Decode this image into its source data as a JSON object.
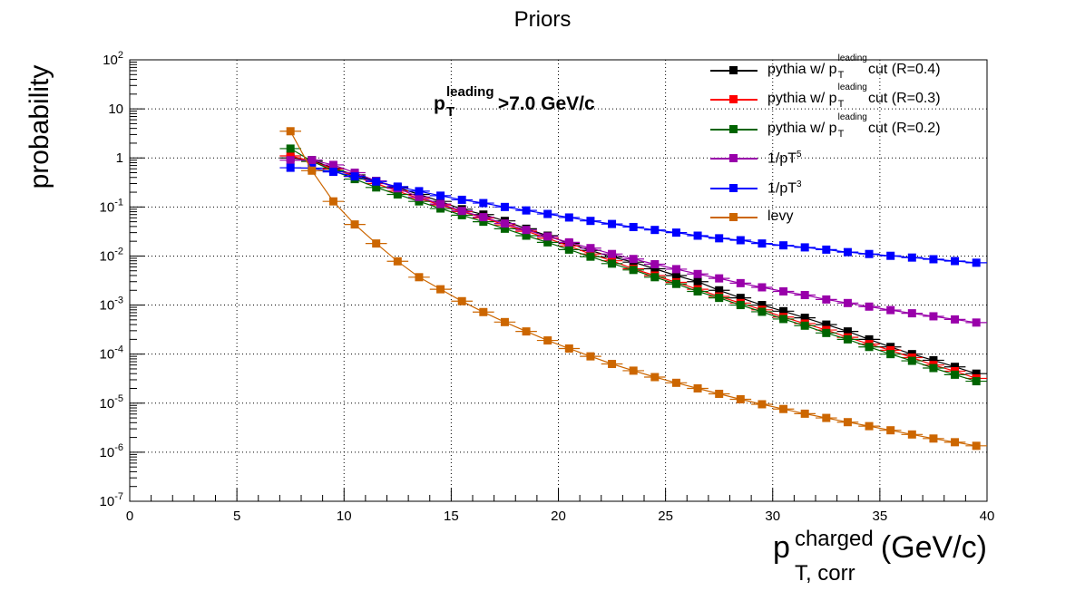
{
  "title": "Priors",
  "ylabel": "probability",
  "xlabel": {
    "base": "p",
    "sup": "charged",
    "sub": "T, corr",
    "unit": "(GeV/c)"
  },
  "annotation": {
    "base": "p",
    "sup": "leading",
    "sub": "T",
    "rest": ">7.0 GeV/c"
  },
  "legend": [
    {
      "pre": "pythia w/ ",
      "p": "p",
      "sup": "leading",
      "sub": "T",
      "post": " cut (R=0.4)"
    },
    {
      "pre": "pythia w/ ",
      "p": "p",
      "sup": "leading",
      "sub": "T",
      "post": " cut (R=0.3)"
    },
    {
      "pre": "pythia w/ ",
      "p": "p",
      "sup": "leading",
      "sub": "T",
      "post": " cut (R=0.2)"
    },
    {
      "pre": "1/pT",
      "sup": "5"
    },
    {
      "pre": "1/pT",
      "sup": "3"
    },
    {
      "pre": "levy"
    }
  ],
  "chart_data": {
    "type": "scatter",
    "title": "Priors",
    "xlabel": "p_T,corr^charged (GeV/c)",
    "ylabel": "probability",
    "xlim": [
      0,
      40
    ],
    "ylim": [
      1e-07,
      100
    ],
    "yscale": "log",
    "grid": true,
    "legend_position": "top-right",
    "x_tick_labels": [
      "0",
      "5",
      "10",
      "15",
      "20",
      "25",
      "30",
      "35",
      "40"
    ],
    "y_tick_labels": [
      {
        "base": "10",
        "exp": "-7"
      },
      {
        "base": "10",
        "exp": "-6"
      },
      {
        "base": "10",
        "exp": "-5"
      },
      {
        "base": "10",
        "exp": "-4"
      },
      {
        "base": "10",
        "exp": "-3"
      },
      {
        "base": "10",
        "exp": "-2"
      },
      {
        "base": "10",
        "exp": "-1"
      },
      {
        "base": "1",
        "exp": ""
      },
      {
        "base": "10",
        "exp": ""
      },
      {
        "base": "10",
        "exp": "2"
      }
    ],
    "x": [
      7.5,
      8.5,
      9.5,
      10.5,
      11.5,
      12.5,
      13.5,
      14.5,
      15.5,
      16.5,
      17.5,
      18.5,
      19.5,
      20.5,
      21.5,
      22.5,
      23.5,
      24.5,
      25.5,
      26.5,
      27.5,
      28.5,
      29.5,
      30.5,
      31.5,
      32.5,
      33.5,
      34.5,
      35.5,
      36.5,
      37.5,
      38.5,
      39.5
    ],
    "series": [
      {
        "name": "pythia w/ pT leading cut (R=0.4)",
        "color": "#000000",
        "values": [
          1.0,
          0.9,
          0.62,
          0.45,
          0.34,
          0.25,
          0.18,
          0.13,
          0.09,
          0.07,
          0.052,
          0.036,
          0.026,
          0.018,
          0.013,
          0.0095,
          0.0075,
          0.0055,
          0.004,
          0.003,
          0.002,
          0.0014,
          0.001,
          0.00075,
          0.00055,
          0.0004,
          0.00029,
          0.0002,
          0.00014,
          0.0001,
          7.5e-05,
          5.5e-05,
          4e-05
        ]
      },
      {
        "name": "pythia w/ pT leading cut (R=0.3)",
        "color": "#ff0000",
        "values": [
          1.1,
          0.85,
          0.6,
          0.42,
          0.3,
          0.21,
          0.15,
          0.11,
          0.08,
          0.06,
          0.043,
          0.032,
          0.023,
          0.016,
          0.011,
          0.008,
          0.0055,
          0.004,
          0.0029,
          0.0021,
          0.0015,
          0.0011,
          0.0008,
          0.00057,
          0.00042,
          0.00031,
          0.00022,
          0.00016,
          0.00012,
          8.5e-05,
          6e-05,
          4.5e-05,
          3.2e-05
        ]
      },
      {
        "name": "pythia w/ pT leading cut (R=0.2)",
        "color": "#006400",
        "values": [
          1.55,
          0.85,
          0.55,
          0.37,
          0.25,
          0.18,
          0.13,
          0.093,
          0.068,
          0.05,
          0.036,
          0.026,
          0.019,
          0.0135,
          0.0097,
          0.007,
          0.0052,
          0.0037,
          0.0027,
          0.0019,
          0.0014,
          0.001,
          0.00073,
          0.00052,
          0.00038,
          0.00027,
          0.0002,
          0.00014,
          0.0001,
          7.3e-05,
          5.2e-05,
          3.8e-05,
          2.8e-05
        ]
      },
      {
        "name": "1/pT5",
        "color": "#9900aa",
        "values": [
          0.9,
          0.9,
          0.72,
          0.5,
          0.34,
          0.24,
          0.16,
          0.115,
          0.083,
          0.062,
          0.046,
          0.034,
          0.025,
          0.019,
          0.0145,
          0.011,
          0.0087,
          0.0068,
          0.0054,
          0.0043,
          0.0035,
          0.0028,
          0.0023,
          0.0019,
          0.0016,
          0.0013,
          0.0011,
          0.00093,
          0.00079,
          0.00068,
          0.00059,
          0.00051,
          0.00044
        ]
      },
      {
        "name": "1/pT3",
        "color": "#0000ff",
        "values": [
          0.63,
          0.62,
          0.52,
          0.42,
          0.33,
          0.26,
          0.21,
          0.17,
          0.14,
          0.12,
          0.1,
          0.085,
          0.072,
          0.061,
          0.052,
          0.045,
          0.039,
          0.034,
          0.03,
          0.026,
          0.023,
          0.021,
          0.018,
          0.0165,
          0.015,
          0.0135,
          0.012,
          0.011,
          0.0101,
          0.0093,
          0.0086,
          0.0079,
          0.0073
        ]
      },
      {
        "name": "levy",
        "color": "#cc6600",
        "values": [
          3.5,
          0.55,
          0.13,
          0.044,
          0.018,
          0.0078,
          0.0037,
          0.0021,
          0.0012,
          0.00072,
          0.00045,
          0.00029,
          0.00019,
          0.00013,
          9e-05,
          6.3e-05,
          4.6e-05,
          3.4e-05,
          2.6e-05,
          2e-05,
          1.55e-05,
          1.2e-05,
          9.5e-06,
          7.6e-06,
          6.1e-06,
          5e-06,
          4.1e-06,
          3.4e-06,
          2.8e-06,
          2.3e-06,
          1.9e-06,
          1.6e-06,
          1.35e-06
        ]
      }
    ]
  }
}
